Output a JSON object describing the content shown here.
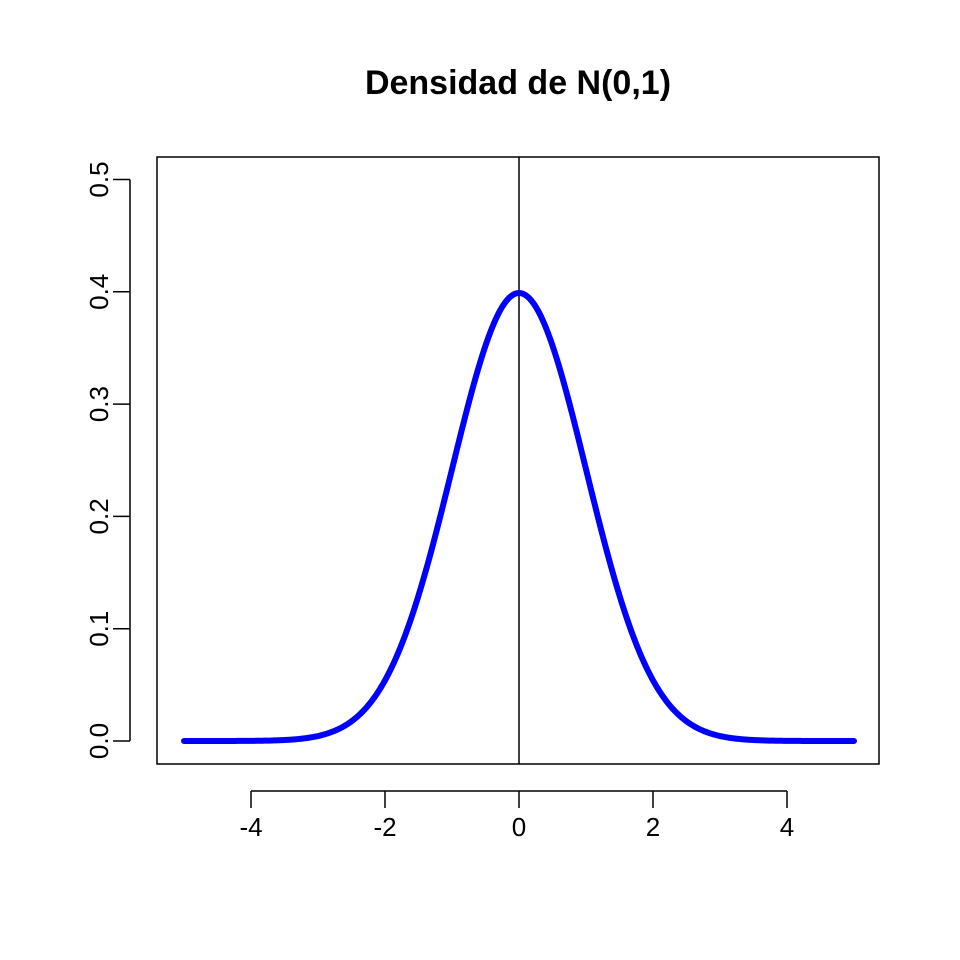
{
  "chart_data": {
    "type": "line",
    "title": "Densidad de N(0,1)",
    "xlabel": "",
    "ylabel": "",
    "xlim": [
      -5,
      5
    ],
    "ylim": [
      0,
      0.5
    ],
    "x_ticks": [
      -4,
      -2,
      0,
      2,
      4
    ],
    "x_tick_labels": [
      "-4",
      "-2",
      "0",
      "2",
      "4"
    ],
    "y_ticks": [
      0,
      0.1,
      0.2,
      0.3,
      0.4,
      0.5
    ],
    "y_tick_labels": [
      "0.0",
      "0.1",
      "0.2",
      "0.3",
      "0.4",
      "0.5"
    ],
    "grid": false,
    "reference_line": {
      "x": 0,
      "color": "#000000"
    },
    "series": [
      {
        "color": "#0000ff",
        "x": [
          -5,
          -4.5,
          -4,
          -3.5,
          -3,
          -2.5,
          -2,
          -1.5,
          -1,
          -0.5,
          0,
          0.5,
          1,
          1.5,
          2,
          2.5,
          3,
          3.5,
          4,
          4.5,
          5
        ],
        "y": [
          1.5e-06,
          1.6e-05,
          0.000134,
          0.000873,
          0.004432,
          0.017528,
          0.053991,
          0.129518,
          0.241971,
          0.352065,
          0.398942,
          0.352065,
          0.241971,
          0.129518,
          0.053991,
          0.017528,
          0.004432,
          0.000873,
          0.000134,
          1.6e-05,
          1.5e-06
        ]
      }
    ]
  }
}
